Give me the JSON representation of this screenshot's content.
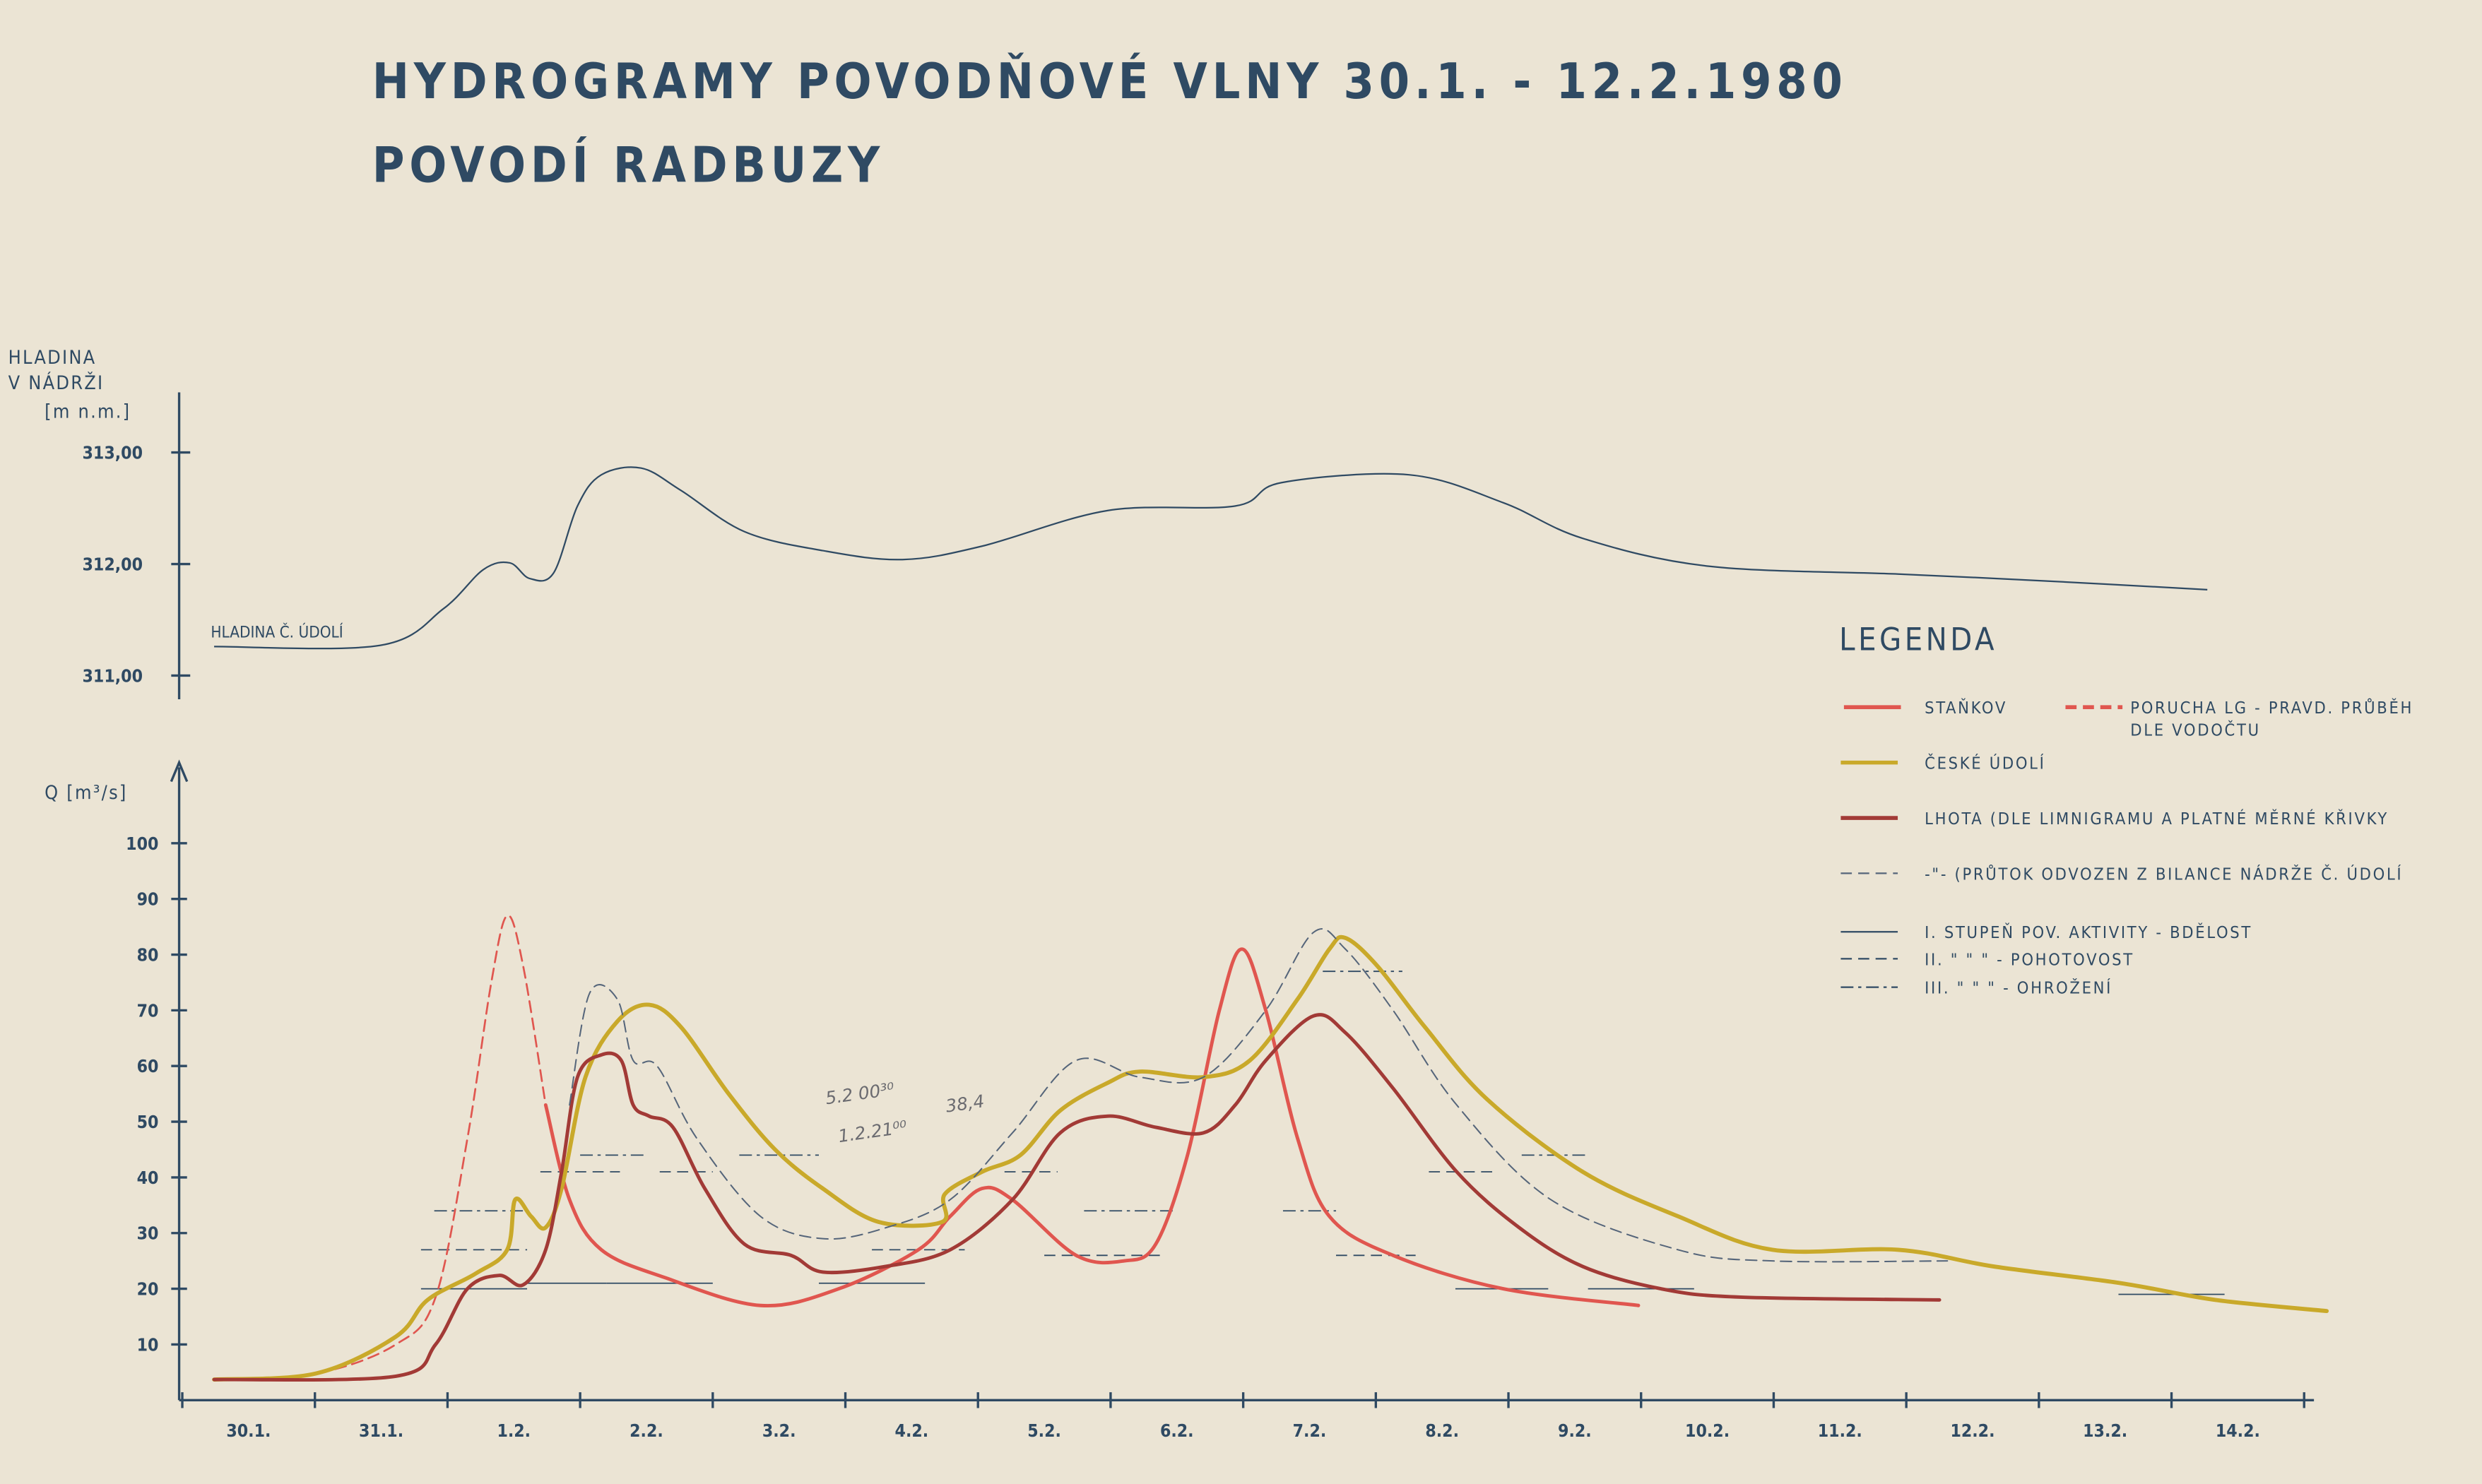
{
  "title_line1": "HYDROGRAMY POVODŇOVÉ VLNY   30.1. - 12.2.1980",
  "title_line2": "POVODÍ RADBUZY",
  "pencil_notes": [
    "5.2 00³⁰",
    "1.2.21⁰⁰",
    "38,4"
  ],
  "colors": {
    "ink": "#2f4a63",
    "stankov": "#e0564f",
    "ceske": "#c9a92a",
    "lhota": "#a23a36",
    "dashed": "#55657a",
    "paper": "#ebe4d4"
  },
  "chart_data": [
    {
      "type": "line",
      "title": "Hladina v nádrži",
      "ylabel": "HLADINA V NÁDRŽI [m n.m.]",
      "yticks": [
        "313,00",
        "312,00",
        "311,00"
      ],
      "ylim": [
        310.8,
        313.5
      ],
      "annotation": "HLADINA Č. ÚDOLÍ",
      "series": [
        {
          "name": "Hladina Č. Údolí",
          "x": [
            0.24,
            1.49,
            1.97,
            2.27,
            2.47,
            2.62,
            2.8,
            2.98,
            3.16,
            3.46,
            3.76,
            4.24,
            4.83,
            5.43,
            6.03,
            6.98,
            7.94,
            8.29,
            9.25,
            9.96,
            10.56,
            11.51,
            12.94,
            14.02,
            15.27
          ],
          "y": [
            311.26,
            311.27,
            311.6,
            311.95,
            312.01,
            311.87,
            311.92,
            312.52,
            312.8,
            312.86,
            312.66,
            312.29,
            312.12,
            312.04,
            312.16,
            312.48,
            312.52,
            312.73,
            312.8,
            312.55,
            312.23,
            311.98,
            311.91,
            311.85,
            311.77
          ]
        }
      ]
    },
    {
      "type": "line",
      "ylabel": "Q [m³/s]",
      "ylim": [
        0,
        100
      ],
      "yticks": [
        10,
        20,
        30,
        40,
        50,
        60,
        70,
        80,
        90,
        100
      ],
      "xlabel_ticks": [
        "30.1.",
        "31.1.",
        "1.2.",
        "2.2.",
        "3.2.",
        "4.2.",
        "5.2.",
        "6.2.",
        "7.2.",
        "8.2.",
        "9.2.",
        "10.2.",
        "11.2.",
        "12.2.",
        "13.2.",
        "14.2."
      ],
      "x_unit": "days since 30.1. 00:00",
      "series": [
        {
          "name": "STAŇKOV",
          "style": "solid",
          "color_key": "stankov",
          "x": [
            2.74,
            2.92,
            3.16,
            3.64,
            4.36,
            4.95,
            5.55,
            5.79,
            6.03,
            6.26,
            6.74,
            7.1,
            7.34,
            7.58,
            7.82,
            7.99,
            8.17,
            8.41,
            8.65,
            9.13,
            9.96,
            10.98
          ],
          "y": [
            53,
            36,
            27,
            22,
            17,
            20,
            27,
            33,
            38,
            36,
            26,
            25,
            28,
            44,
            70,
            81,
            70,
            47,
            33,
            26,
            20,
            17
          ]
        },
        {
          "name": "PORUCHA LG - PRAVD. PRŮBĚH DLE VODOČTU",
          "style": "dashed",
          "color_key": "stankov",
          "x": [
            0.24,
            1.01,
            1.61,
            1.91,
            2.15,
            2.33,
            2.45,
            2.57,
            2.74
          ],
          "y": [
            3.7,
            4.8,
            10,
            18.5,
            47,
            75,
            87,
            78,
            53
          ]
        },
        {
          "name": "ČESKÉ ÚDOLÍ",
          "style": "solid",
          "color_key": "ceske",
          "x": [
            0.24,
            1.01,
            1.61,
            1.85,
            2.21,
            2.45,
            2.51,
            2.63,
            2.74,
            2.86,
            3.04,
            3.28,
            3.52,
            3.76,
            4.12,
            4.47,
            4.83,
            5.25,
            5.73,
            5.75,
            6.03,
            6.32,
            6.62,
            6.98,
            7.22,
            7.7,
            8.05,
            8.41,
            8.65,
            8.77,
            9.01,
            9.37,
            9.84,
            10.56,
            11.28,
            11.99,
            12.94,
            13.66,
            14.62,
            15.33,
            16.17
          ],
          "y": [
            3.7,
            4.8,
            11.4,
            18,
            22.7,
            27,
            36,
            33,
            31,
            38,
            58,
            68,
            71,
            67,
            55,
            45,
            38,
            32,
            32,
            37,
            41,
            44,
            52,
            57,
            59,
            58,
            61,
            72,
            81,
            83,
            78,
            67,
            54,
            41,
            33,
            27,
            27,
            24,
            21,
            18,
            16
          ]
        },
        {
          "name": "LHOTA (DLE LIMNIGRAMU A PLATNÉ MĚRNÉ KŘIVKY",
          "style": "solid",
          "color_key": "lhota",
          "x": [
            0.24,
            1.61,
            1.91,
            2.15,
            2.39,
            2.57,
            2.74,
            2.86,
            2.98,
            3.16,
            3.31,
            3.4,
            3.52,
            3.7,
            3.94,
            4.24,
            4.59,
            4.83,
            5.3,
            5.79,
            6.26,
            6.62,
            6.98,
            7.34,
            7.7,
            7.94,
            8.17,
            8.53,
            8.77,
            9.13,
            9.61,
            10.08,
            10.56,
            11.15,
            11.75,
            13.25
          ],
          "y": [
            3.7,
            4.3,
            10,
            20,
            22.4,
            20.7,
            27,
            41,
            58,
            62,
            61,
            53,
            51,
            49,
            38,
            28,
            26,
            23,
            24,
            27,
            36,
            48,
            51,
            49,
            48,
            53,
            61,
            69,
            66,
            56,
            41,
            31,
            24,
            20,
            18.5,
            18
          ]
        },
        {
          "name": "(PRŮTOK ODVOZEN Z BILANCE NÁDRŽE Č. ÚDOLÍ",
          "style": "dashed",
          "color_key": "dashed",
          "x": [
            2.92,
            3.07,
            3.28,
            3.4,
            3.58,
            3.88,
            4.36,
            4.83,
            5.31,
            5.79,
            6.26,
            6.74,
            7.22,
            7.7,
            8.17,
            8.53,
            8.77,
            9.13,
            9.61,
            10.32,
            11.28,
            11.99,
            13.31
          ],
          "y": [
            53,
            73,
            72,
            61,
            60,
            47,
            33,
            29,
            31,
            36,
            48,
            61,
            58,
            58,
            70,
            84,
            81,
            70,
            53,
            36,
            27,
            25,
            25
          ]
        }
      ],
      "thresholds": [
        {
          "level": "I",
          "value": 20,
          "x": [
            1.8,
            2.6
          ]
        },
        {
          "level": "II",
          "value": 27,
          "x": [
            1.8,
            2.6
          ]
        },
        {
          "level": "III",
          "value": 34,
          "x": [
            1.9,
            2.6
          ]
        },
        {
          "level": "I",
          "value": 21,
          "x": [
            2.6,
            3.2
          ]
        },
        {
          "level": "II",
          "value": 41,
          "x": [
            2.7,
            3.3
          ]
        },
        {
          "level": "III",
          "value": 44,
          "x": [
            3.0,
            3.5
          ]
        },
        {
          "level": "I",
          "value": 21,
          "x": [
            3.2,
            4.0
          ]
        },
        {
          "level": "II",
          "value": 41,
          "x": [
            3.6,
            4.0
          ]
        },
        {
          "level": "III",
          "value": 44,
          "x": [
            4.2,
            4.8
          ]
        },
        {
          "level": "I",
          "value": 21,
          "x": [
            4.8,
            5.6
          ]
        },
        {
          "level": "II",
          "value": 27,
          "x": [
            5.2,
            5.9
          ]
        },
        {
          "level": "II",
          "value": 26,
          "x": [
            6.5,
            7.4
          ]
        },
        {
          "level": "III",
          "value": 34,
          "x": [
            6.8,
            7.5
          ]
        },
        {
          "level": "II",
          "value": 41,
          "x": [
            6.2,
            6.6
          ]
        },
        {
          "level": "III",
          "value": 34,
          "x": [
            8.3,
            8.7
          ]
        },
        {
          "level": "II",
          "value": 26,
          "x": [
            8.7,
            9.3
          ]
        },
        {
          "level": "III",
          "value": 77,
          "x": [
            8.6,
            9.2
          ]
        },
        {
          "level": "I",
          "value": 20,
          "x": [
            9.6,
            10.3
          ]
        },
        {
          "level": "II",
          "value": 41,
          "x": [
            9.4,
            9.9
          ]
        },
        {
          "level": "III",
          "value": 44,
          "x": [
            10.1,
            10.6
          ]
        },
        {
          "level": "I",
          "value": 20,
          "x": [
            10.6,
            11.4
          ]
        },
        {
          "level": "I",
          "value": 19,
          "x": [
            14.6,
            15.4
          ]
        }
      ]
    }
  ],
  "legend": {
    "title": "LEGENDA",
    "items": [
      {
        "label": "STAŇKOV",
        "color_key": "stankov",
        "style": "solid"
      },
      {
        "label": "PORUCHA LG - PRAVD. PRŮBĚH",
        "label2": "DLE VODOČTU",
        "color_key": "stankov",
        "style": "dashed"
      },
      {
        "label": "ČESKÉ ÚDOLÍ",
        "color_key": "ceske",
        "style": "solid"
      },
      {
        "label": "LHOTA (DLE LIMNIGRAMU A PLATNÉ MĚRNÉ KŘIVKY",
        "color_key": "lhota",
        "style": "solid"
      },
      {
        "label": "-\"-  (PRŮTOK ODVOZEN Z BILANCE NÁDRŽE Č. ÚDOLÍ",
        "color_key": "dashed",
        "style": "dashed"
      },
      {
        "label": "I. STUPEŇ POV. AKTIVITY  -  BDĚLOST",
        "style": "solid"
      },
      {
        "label": "II.     \"      \"      \"     -  POHOTOVOST",
        "style": "dashed"
      },
      {
        "label": "III.    \"      \"      \"     -  OHROŽENÍ",
        "style": "dashdot"
      }
    ]
  }
}
